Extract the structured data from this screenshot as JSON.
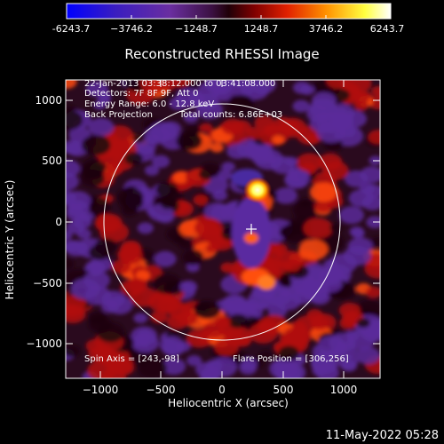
{
  "colorbar": {
    "labels": [
      "-6243.7",
      "−3746.2",
      "−1248.7",
      "1248.7",
      "3746.2",
      "6243.7"
    ],
    "min": -6243.7,
    "max": 6243.7,
    "colors": [
      "#0000ff",
      "#3a1dc0",
      "#6a2ea0",
      "#4a1040",
      "#3a0000",
      "#b00000",
      "#ff2a00",
      "#ffa000",
      "#ffff40",
      "#ffffff"
    ]
  },
  "title": "Reconstructed RHESSI Image",
  "info": {
    "time": "22-Jan-2013 03:38:12.000 to 03:41:08.000",
    "detectors": "Detectors: 7F 8F 9F, Att 0",
    "energy": "Energy Range: 6.0 - 12.8 keV",
    "method": "Back Projection",
    "counts": "Total counts: 6.86E+03"
  },
  "spin_axis": "Spin Axis = [243,-98]",
  "flare_position": "Flare Position = [306,256]",
  "xaxis": {
    "label": "Heliocentric X (arcsec)",
    "ticks": [
      "−1000",
      "−500",
      "0",
      "500",
      "1000"
    ]
  },
  "yaxis": {
    "label": "Heliocentric Y (arcsec)",
    "ticks": [
      "1000",
      "500",
      "0",
      "−500",
      "−1000"
    ]
  },
  "date_stamp": "11-May-2022 05:28",
  "colors": {
    "background": "#000000",
    "plot_background": "#2a0a1e",
    "ring_red": "#b01010",
    "ring_purple": "#5a2a9a",
    "source_yellow": "#ffff80"
  }
}
